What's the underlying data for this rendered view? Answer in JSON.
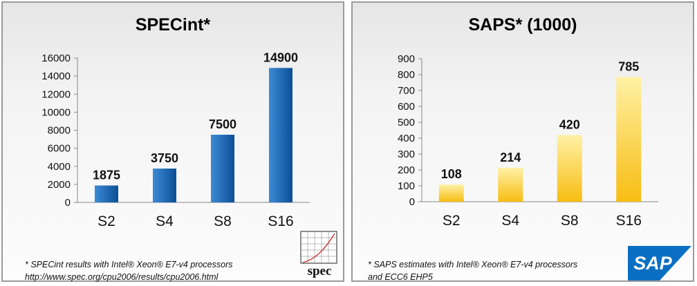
{
  "colors": {
    "blue_light": "#3d8ad6",
    "blue_dark": "#0b4f95",
    "gold_light": "#fff1a6",
    "gold_dark": "#f7bd12",
    "sap_blue": "#0a6fc2"
  },
  "chart_data": [
    {
      "type": "bar",
      "title": "SPECint*",
      "categories": [
        "S2",
        "S4",
        "S8",
        "S16"
      ],
      "values": [
        1875,
        3750,
        7500,
        14900
      ],
      "ylim": [
        0,
        16000
      ],
      "yticks": [
        0,
        2000,
        4000,
        6000,
        8000,
        10000,
        12000,
        14000,
        16000
      ],
      "xlabel": "",
      "ylabel": "",
      "bar_style": "blue"
    },
    {
      "type": "bar",
      "title": "SAPS* (1000)",
      "categories": [
        "S2",
        "S4",
        "S8",
        "S16"
      ],
      "values": [
        108,
        214,
        420,
        785
      ],
      "ylim": [
        0,
        900
      ],
      "yticks": [
        0,
        100,
        200,
        300,
        400,
        500,
        600,
        700,
        800,
        900
      ],
      "xlabel": "",
      "ylabel": "",
      "bar_style": "gold"
    }
  ],
  "footnotes": {
    "spec_line1": "* SPECint results with Intel® Xeon® E7-v4 processors",
    "spec_line2": "http://www.spec.org/cpu2006/results/cpu2006.html",
    "saps_line1": "* SAPS estimates with Intel® Xeon® E7-v4 processors",
    "saps_line2": "and ECC6 EHP5"
  },
  "logos": {
    "spec": "spec",
    "sap": "SAP"
  }
}
